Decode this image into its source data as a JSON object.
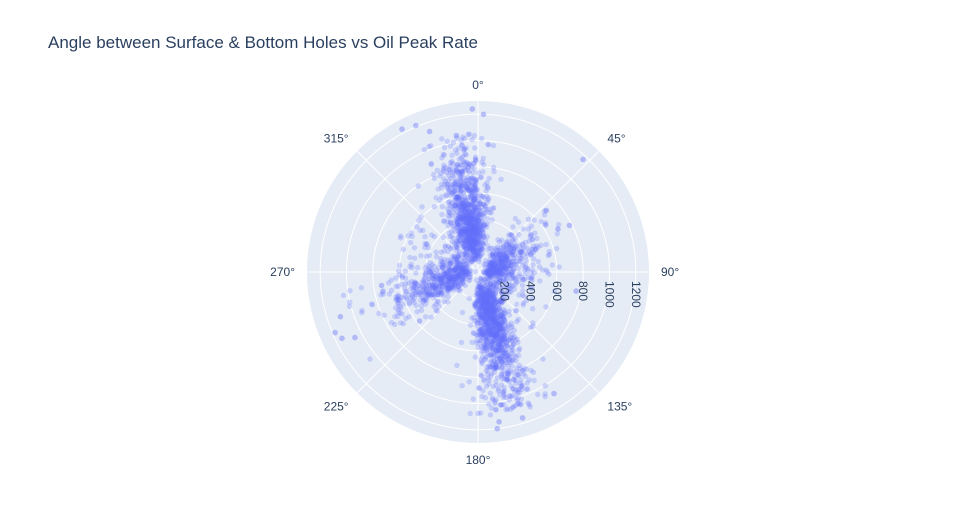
{
  "chart_data": {
    "type": "scatter",
    "subtype": "polar",
    "title": "Angle between Surface & Bottom Holes vs Oil Peak Rate",
    "angular_axis": {
      "direction": "clockwise",
      "rotation": "north",
      "unit": "degrees",
      "tick_labels": [
        "0°",
        "45°",
        "90°",
        "135°",
        "180°",
        "225°",
        "270°",
        "315°"
      ],
      "tick_values": [
        0,
        45,
        90,
        135,
        180,
        225,
        270,
        315
      ]
    },
    "radial_axis": {
      "range": [
        0,
        1300
      ],
      "tick_values": [
        200,
        400,
        600,
        800,
        1000,
        1200
      ],
      "tick_labels": [
        "200",
        "400",
        "600",
        "800",
        "1000",
        "1200"
      ],
      "angle": 90
    },
    "grid": true,
    "marker": {
      "color": "#636efa",
      "opacity": 0.25
    },
    "clusters": [
      {
        "theta_center": 350,
        "theta_spread": 10,
        "r_median": 420,
        "r_max": 1050,
        "count": 900
      },
      {
        "theta_center": 165,
        "theta_spread": 9,
        "r_median": 450,
        "r_max": 1100,
        "count": 950
      },
      {
        "theta_center": 60,
        "theta_spread": 12,
        "r_median": 260,
        "r_max": 720,
        "count": 280
      },
      {
        "theta_center": 250,
        "theta_spread": 10,
        "r_median": 330,
        "r_max": 1100,
        "count": 330
      },
      {
        "theta_center": 120,
        "theta_spread": 25,
        "r_median": 200,
        "r_max": 620,
        "count": 180
      },
      {
        "theta_center": 300,
        "theta_spread": 25,
        "r_median": 230,
        "r_max": 700,
        "count": 180
      },
      {
        "theta_center": 90,
        "theta_spread": 8,
        "r_median": 190,
        "r_max": 620,
        "count": 100
      },
      {
        "theta_center": 270,
        "theta_spread": 8,
        "r_median": 220,
        "r_max": 720,
        "count": 100
      }
    ],
    "outliers": [
      {
        "theta": 358,
        "r": 1240
      },
      {
        "theta": 2,
        "r": 1200
      },
      {
        "theta": 332,
        "r": 1230
      },
      {
        "theta": 337,
        "r": 1210
      },
      {
        "theta": 341,
        "r": 1130
      },
      {
        "theta": 351,
        "r": 1050
      },
      {
        "theta": 43,
        "r": 1170
      },
      {
        "theta": 48,
        "r": 700
      },
      {
        "theta": 63,
        "r": 780
      },
      {
        "theta": 101,
        "r": 760
      },
      {
        "theta": 148,
        "r": 1090
      },
      {
        "theta": 163,
        "r": 1160
      },
      {
        "theta": 173,
        "r": 1200
      },
      {
        "theta": 172,
        "r": 1150
      },
      {
        "theta": 247,
        "r": 1180
      },
      {
        "theta": 244,
        "r": 1150
      },
      {
        "theta": 252,
        "r": 1100
      },
      {
        "theta": 242,
        "r": 1060
      },
      {
        "theta": 230,
        "r": 580
      },
      {
        "theta": 262,
        "r": 740
      }
    ]
  }
}
